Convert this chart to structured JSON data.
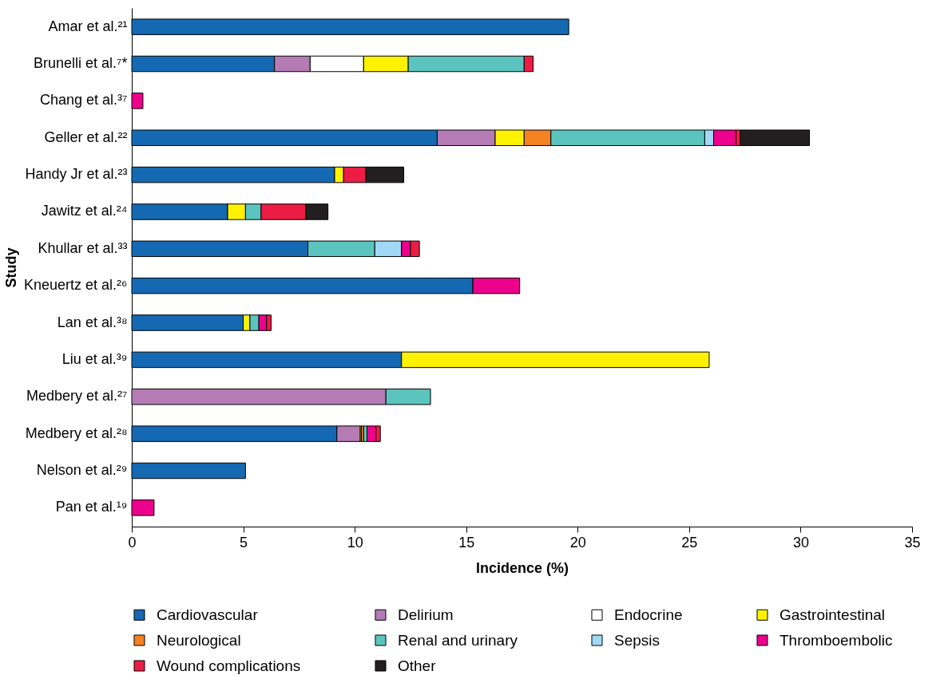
{
  "chart_data": {
    "type": "bar",
    "orientation": "horizontal",
    "stacked": true,
    "xlabel": "Incidence (%)",
    "ylabel": "Study",
    "categories": [
      "Amar et al.²¹",
      "Brunelli et al.⁷*",
      "Chang et al.³⁷",
      "Geller et al.²²",
      "Handy Jr et al.²³",
      "Jawitz et al.²⁴",
      "Khullar et al.³³",
      "Kneuertz et al.²⁶",
      "Lan et al.³⁸",
      "Liu et al.³⁹",
      "Medbery et al.²⁷",
      "Medbery et al.²⁸",
      "Nelson et al.²⁹",
      "Pan et al.¹⁹"
    ],
    "series": [
      {
        "name": "Cardiovascular",
        "color": "#1569b3",
        "values": [
          19.6,
          6.4,
          null,
          13.7,
          9.1,
          4.3,
          7.9,
          15.3,
          5.0,
          12.1,
          null,
          9.2,
          5.1,
          null
        ]
      },
      {
        "name": "Delirium",
        "color": "#b47bb5",
        "values": [
          null,
          1.6,
          null,
          2.6,
          null,
          null,
          null,
          null,
          null,
          null,
          11.4,
          1.05,
          null,
          null
        ]
      },
      {
        "name": "Endocrine",
        "color": "#ffffff",
        "values": [
          null,
          2.4,
          null,
          null,
          null,
          null,
          null,
          null,
          null,
          null,
          null,
          null,
          null,
          null
        ]
      },
      {
        "name": "Gastrointestinal",
        "color": "#fff200",
        "values": [
          null,
          2.0,
          null,
          1.3,
          0.4,
          0.8,
          null,
          null,
          0.3,
          13.8,
          null,
          0.05,
          null,
          null
        ]
      },
      {
        "name": "Neurological",
        "color": "#f58220",
        "values": [
          null,
          null,
          null,
          1.2,
          null,
          null,
          null,
          null,
          null,
          null,
          null,
          0.1,
          null,
          null
        ]
      },
      {
        "name": "Renal and urinary",
        "color": "#5bc4bf",
        "values": [
          null,
          5.2,
          null,
          6.9,
          null,
          0.7,
          3.0,
          null,
          0.4,
          null,
          2.0,
          0.15,
          null,
          null
        ]
      },
      {
        "name": "Sepsis",
        "color": "#a0d9f5",
        "values": [
          null,
          null,
          null,
          0.4,
          null,
          null,
          1.2,
          null,
          null,
          null,
          null,
          null,
          null,
          null
        ]
      },
      {
        "name": "Thromboembolic",
        "color": "#ec008c",
        "values": [
          null,
          null,
          0.5,
          1.0,
          null,
          null,
          0.4,
          2.1,
          0.35,
          null,
          null,
          0.4,
          null,
          1.0
        ]
      },
      {
        "name": "Wound complications",
        "color": "#ed1c45",
        "values": [
          null,
          0.4,
          null,
          0.2,
          1.0,
          2.0,
          0.4,
          null,
          0.2,
          null,
          null,
          0.2,
          null,
          null
        ]
      },
      {
        "name": "Other",
        "color": "#231f20",
        "values": [
          null,
          null,
          null,
          3.1,
          1.7,
          1.0,
          null,
          null,
          null,
          null,
          null,
          null,
          null,
          null
        ]
      }
    ],
    "xlim": [
      0,
      35
    ],
    "xticks": [
      0,
      5,
      10,
      15,
      20,
      25,
      30,
      35
    ],
    "grid": false,
    "legend": "bottom"
  }
}
